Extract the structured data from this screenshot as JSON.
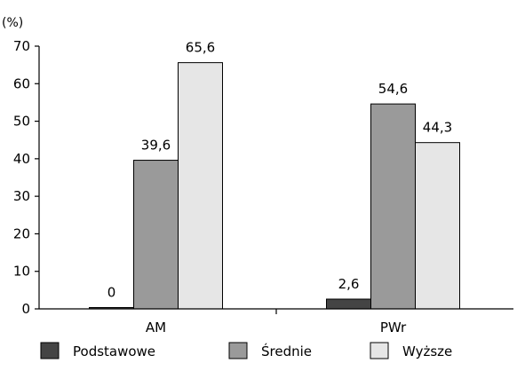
{
  "chart_data": {
    "type": "bar",
    "unit_label": "(%)",
    "categories": [
      "AM",
      "PWr"
    ],
    "series": [
      {
        "name": "Podstawowe",
        "color": "#444444",
        "values": [
          0,
          2.6
        ],
        "labels": [
          "0",
          "2,6"
        ]
      },
      {
        "name": "Średnie",
        "color": "#9a9a9a",
        "values": [
          39.6,
          54.6
        ],
        "labels": [
          "39,6",
          "54,6"
        ]
      },
      {
        "name": "Wyższe",
        "color": "#e6e6e6",
        "values": [
          65.6,
          44.3
        ],
        "labels": [
          "65,6",
          "44,3"
        ]
      }
    ],
    "yticks": [
      0,
      10,
      20,
      30,
      40,
      50,
      60,
      70
    ],
    "ylim": [
      0,
      70
    ],
    "grid": false,
    "legend_position": "bottom"
  }
}
